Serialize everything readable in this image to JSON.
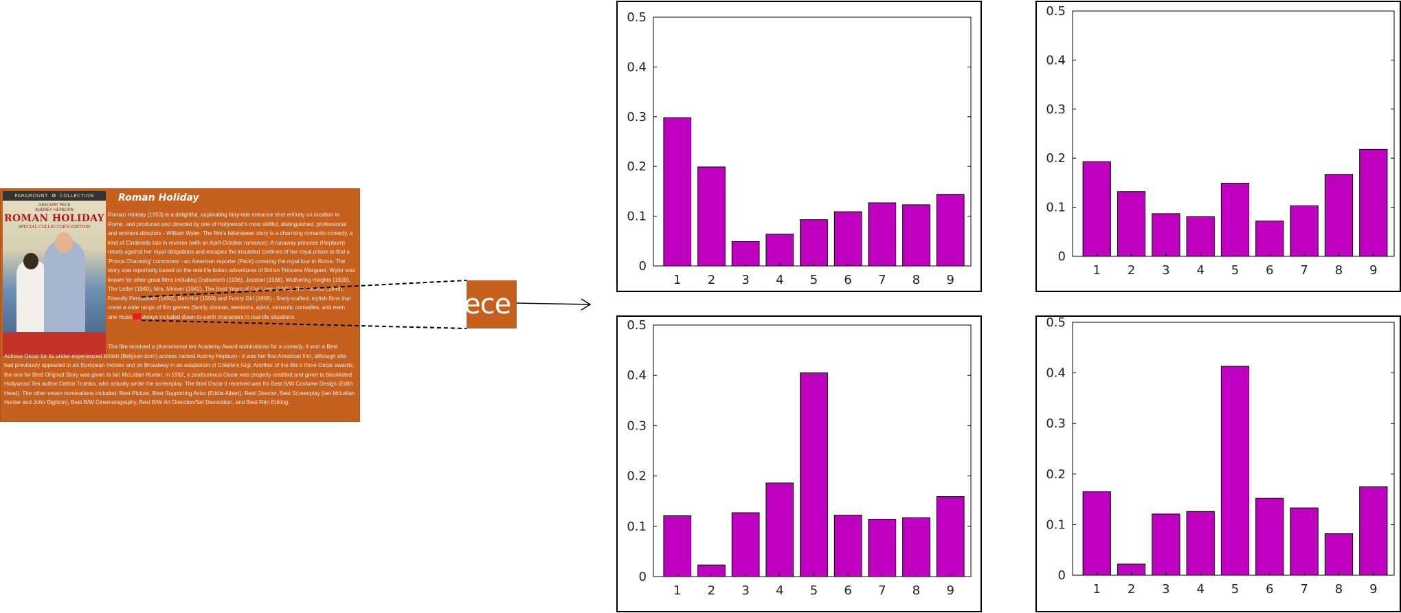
{
  "movie_card": {
    "title": "Roman Holiday",
    "poster": {
      "brand_left": "PARAMOUNT",
      "brand_right": "COLLECTION",
      "actor_1": "GREGORY PECK",
      "actor_2": "AUDREY HEPBURN",
      "title": "ROMAN HOLIDAY",
      "edition": "SPECIAL COLLECTOR'S EDITION"
    },
    "text_top": "Roman Holiday (1953) is a delightful, captivating fairy-tale romance shot entirely on location in Rome, and produced and directed by one of Hollywood's most skillful, distinguished, professional and eminent directors - William Wyler. The film's bittersweet story is a charming romantic-comedy, a kind of Cinderella tale in reverse (with an April-October romance): A runaway princess (Hepburn) rebels against her royal obligations and escapes the insulated confines of her royal prison to find a 'Prince Charming' commoner - an American reporter (Peck) covering the royal tour in Rome. The story was reportedly based on the real-life Italian adventures of British Princess Margaret. Wyler was known for other great films including Dodsworth (1936), Jezebel (1938), Wuthering Heights (1939), The Letter (1940), Mrs. Miniver (1942), The Best Years of Our Lives (1946), The Heiress (1949), Friendly Persuasion (1956), Ben-Hur (1959) and Funny Girl (1968) - finely-crafted, stylish films that cover a wide range of film genres (family dramas, westerns, epics, romantic comedies, and even one musical) always included down-to-earth characters in real-life situations.",
    "text_bottom": "The film received a phenomenal ten Academy Award nominations for a comedy. It won a Best Actress Oscar for its under-experienced British (Belgium-born) actress named Audrey Hepburn - it was her first American film, although she had previously appeared in six European movies and on Broadway in an adaptation of Colette's Gigi. Another of the film's three Oscar awards, the one for Best Original Story was given to Ian McLellan Hunter. In 1992, a posthumous Oscar was properly credited and given to blacklisted Hollywood Ten author Dalton Trumbo, who actually wrote the screenplay. The third Oscar it received was for Best B/W Costume Design (Edith Head). The other seven nominations included: Best Picture, Best Supporting Actor (Eddie Albert), Best Director, Best Screenplay (Ian McLellan Hunter and John Dighton), Best B/W Cinematography, Best B/W Art Direction/Set Decoration, and Best Film Editing."
  },
  "zoom": {
    "text": "ece"
  },
  "colors": {
    "bar": "#c000c0",
    "card": "#c5601f"
  },
  "chart_data": [
    {
      "type": "bar",
      "categories": [
        "1",
        "2",
        "3",
        "4",
        "5",
        "6",
        "7",
        "8",
        "9"
      ],
      "values": [
        0.298,
        0.199,
        0.049,
        0.064,
        0.093,
        0.109,
        0.127,
        0.123,
        0.144
      ],
      "ylim": [
        0,
        0.5
      ],
      "yticks": [
        "0",
        "0.1",
        "0.2",
        "0.3",
        "0.4",
        "0.5"
      ],
      "grid": false
    },
    {
      "type": "bar",
      "categories": [
        "1",
        "2",
        "3",
        "4",
        "5",
        "6",
        "7",
        "8",
        "9"
      ],
      "values": [
        0.193,
        0.132,
        0.087,
        0.081,
        0.149,
        0.072,
        0.103,
        0.167,
        0.218
      ],
      "ylim": [
        0,
        0.5
      ],
      "yticks": [
        "0",
        "0.1",
        "0.2",
        "0.3",
        "0.4",
        "0.5"
      ],
      "grid": false
    },
    {
      "type": "bar",
      "categories": [
        "1",
        "2",
        "3",
        "4",
        "5",
        "6",
        "7",
        "8",
        "9"
      ],
      "values": [
        0.121,
        0.023,
        0.127,
        0.186,
        0.405,
        0.122,
        0.114,
        0.117,
        0.159
      ],
      "ylim": [
        0,
        0.5
      ],
      "yticks": [
        "0",
        "0.1",
        "0.2",
        "0.3",
        "0.4",
        "0.5"
      ],
      "grid": false
    },
    {
      "type": "bar",
      "categories": [
        "1",
        "2",
        "3",
        "4",
        "5",
        "6",
        "7",
        "8",
        "9"
      ],
      "values": [
        0.165,
        0.022,
        0.121,
        0.126,
        0.413,
        0.152,
        0.133,
        0.082,
        0.175
      ],
      "ylim": [
        0,
        0.5
      ],
      "yticks": [
        "0",
        "0.1",
        "0.2",
        "0.3",
        "0.4",
        "0.5"
      ],
      "grid": false
    }
  ]
}
